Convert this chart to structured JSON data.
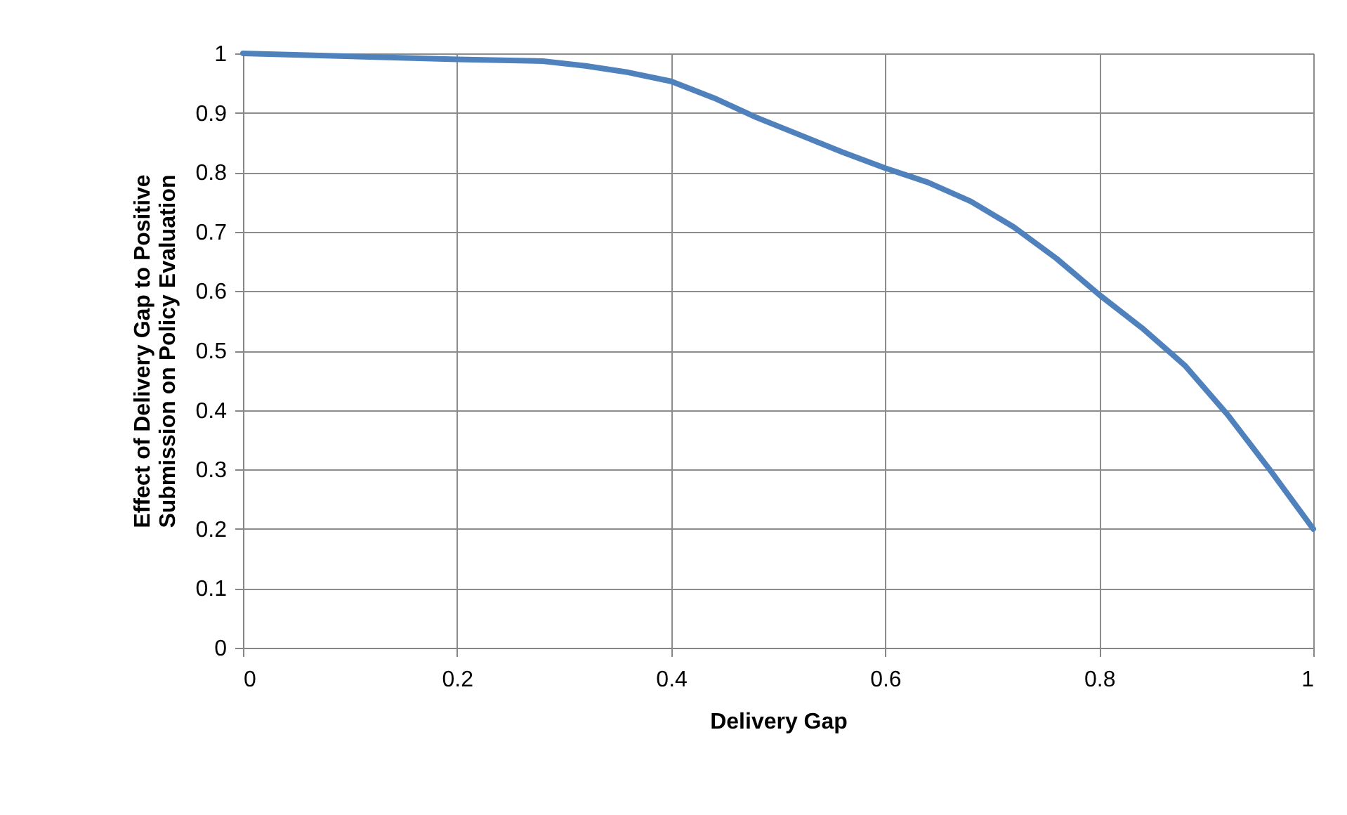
{
  "chart_data": {
    "type": "line",
    "xlabel": "Delivery Gap",
    "ylabel": "Effect of Delivery Gap to Positive\nSubmission on Policy Evaluation",
    "x": [
      0,
      0.2,
      0.28,
      0.32,
      0.36,
      0.4,
      0.44,
      0.48,
      0.52,
      0.56,
      0.6,
      0.64,
      0.68,
      0.72,
      0.76,
      0.8,
      0.84,
      0.88,
      0.92,
      0.96,
      1.0
    ],
    "series": [
      {
        "color": "#4f81bd",
        "values": [
          1.0,
          0.99,
          0.987,
          0.979,
          0.968,
          0.953,
          0.925,
          0.892,
          0.863,
          0.834,
          0.807,
          0.783,
          0.751,
          0.708,
          0.655,
          0.594,
          0.538,
          0.475,
          0.392,
          0.298,
          0.2
        ]
      }
    ],
    "xlim": [
      0,
      1
    ],
    "xticks": [
      0,
      0.2,
      0.4,
      0.6,
      0.8,
      1
    ],
    "ylim": [
      0,
      1
    ],
    "yticks": [
      0,
      0.1,
      0.2,
      0.3,
      0.4,
      0.5,
      0.6,
      0.7,
      0.8,
      0.9,
      1
    ],
    "grid": true,
    "legend": false,
    "marker": "none",
    "line_style": "solid"
  }
}
